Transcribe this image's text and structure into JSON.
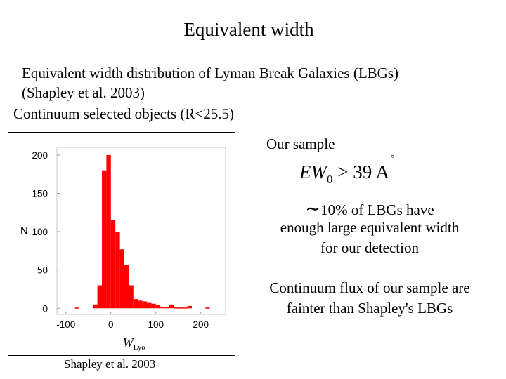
{
  "slide": {
    "title": "Equivalent width",
    "description_line1": "Equivalent width distribution of Lyman Break Galaxies (LBGs)",
    "description_line2": "(Shapley et al. 2003)",
    "description_line3": "Continuum selected objects (R<25.5)",
    "chart_caption": "Shapley et al. 2003"
  },
  "right_panel": {
    "our_sample": "Our sample",
    "formula": {
      "lhs": "EW",
      "subscript": "0",
      "relation": " > 39 ",
      "unit": "A",
      "unit_ring": "°"
    },
    "fraction_tilde": "∼",
    "fraction_text": "10% of  LBGs  have",
    "detection_line2": "enough large equivalent width",
    "detection_line3": "for our detection",
    "flux_line1": "Continuum flux of our sample are",
    "flux_line2": "fainter than Shapley's LBGs"
  },
  "chart_data": {
    "type": "bar",
    "title": "",
    "xlabel": "W",
    "xlabel_subscript": "Lyα",
    "ylabel": "N",
    "xlim": [
      -120,
      255
    ],
    "ylim": [
      -8,
      210
    ],
    "xticks": [
      -100,
      0,
      100,
      200
    ],
    "yticks": [
      0,
      50,
      100,
      150,
      200
    ],
    "bar_color": "#ff0000",
    "bin_width": 10,
    "bins_left": [
      -80,
      -40,
      -30,
      -20,
      -10,
      0,
      10,
      20,
      30,
      40,
      50,
      60,
      70,
      80,
      90,
      100,
      110,
      120,
      130,
      140,
      150,
      160,
      170,
      210
    ],
    "values": [
      1,
      5,
      30,
      180,
      200,
      115,
      100,
      77,
      57,
      30,
      12,
      10,
      9,
      7,
      6,
      4,
      2,
      2,
      5,
      1,
      1,
      1,
      3,
      1
    ]
  }
}
